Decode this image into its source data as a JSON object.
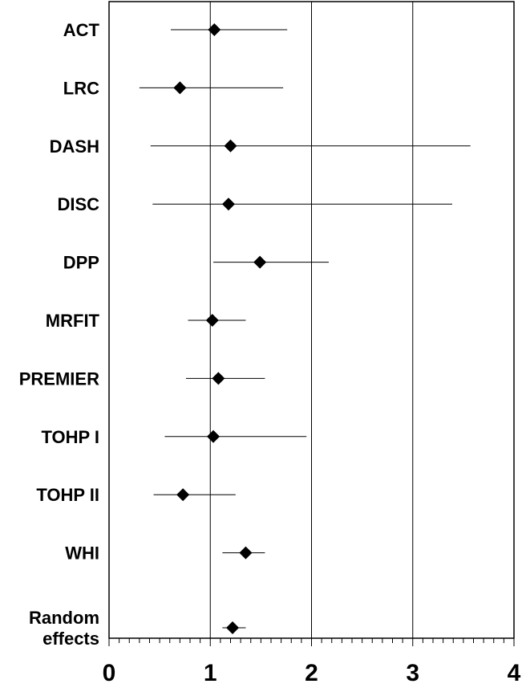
{
  "chart_data": {
    "type": "forest",
    "title": "",
    "xlabel": "",
    "ylabel": "",
    "xlim": [
      0,
      4
    ],
    "xticks": [
      "0",
      "1",
      "2",
      "3",
      "4"
    ],
    "vertical_gridlines": [
      1,
      2,
      3
    ],
    "grid": true,
    "legend": "none",
    "marker": "diamond",
    "marker_color": "#000000",
    "studies": [
      {
        "label": [
          "ACT"
        ],
        "estimate": 1.04,
        "lower": 0.61,
        "upper": 1.76
      },
      {
        "label": [
          "LRC"
        ],
        "estimate": 0.7,
        "lower": 0.3,
        "upper": 1.72
      },
      {
        "label": [
          "DASH"
        ],
        "estimate": 1.2,
        "lower": 0.41,
        "upper": 3.57
      },
      {
        "label": [
          "DISC"
        ],
        "estimate": 1.18,
        "lower": 0.43,
        "upper": 3.39
      },
      {
        "label": [
          "DPP"
        ],
        "estimate": 1.49,
        "lower": 1.03,
        "upper": 2.17
      },
      {
        "label": [
          "MRFIT"
        ],
        "estimate": 1.02,
        "lower": 0.78,
        "upper": 1.35
      },
      {
        "label": [
          "PREMIER"
        ],
        "estimate": 1.08,
        "lower": 0.76,
        "upper": 1.54
      },
      {
        "label": [
          "TOHP I"
        ],
        "estimate": 1.03,
        "lower": 0.55,
        "upper": 1.95
      },
      {
        "label": [
          "TOHP II"
        ],
        "estimate": 0.73,
        "lower": 0.44,
        "upper": 1.25
      },
      {
        "label": [
          "WHI"
        ],
        "estimate": 1.35,
        "lower": 1.12,
        "upper": 1.54
      },
      {
        "label": [
          "Random",
          "effects"
        ],
        "estimate": 1.22,
        "lower": 1.12,
        "upper": 1.35
      }
    ]
  }
}
